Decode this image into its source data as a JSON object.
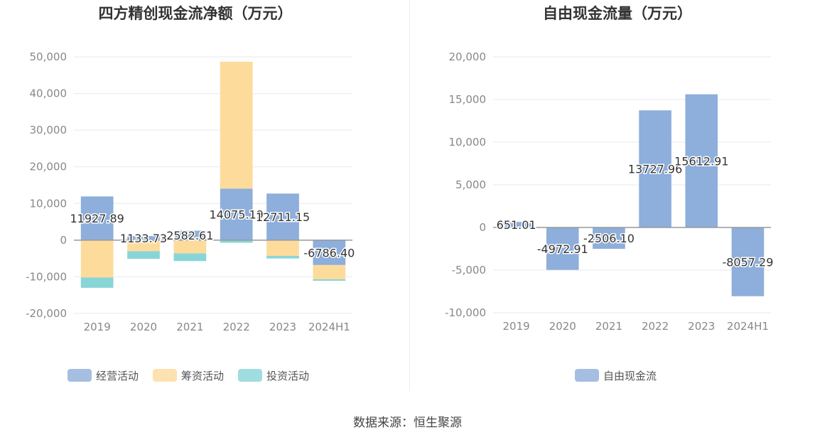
{
  "colors": {
    "operating": "#8eaedb",
    "financing": "#fddb9b",
    "investing": "#88d5d8",
    "free_cash_flow": "#8eaedb",
    "grid": "#e6e9f2",
    "axis_text": "#888888",
    "title": "#333333"
  },
  "source_text": "数据来源：恒生聚源",
  "chart_data": [
    {
      "type": "bar",
      "stacked": true,
      "title": "四方精创现金流净额（万元）",
      "categories": [
        "2019",
        "2020",
        "2021",
        "2022",
        "2023",
        "2024H1"
      ],
      "ylim": [
        -20000,
        50000
      ],
      "yticks": [
        50000,
        40000,
        30000,
        20000,
        10000,
        0,
        -10000,
        -20000
      ],
      "ytick_labels": [
        "50,000",
        "40,000",
        "30,000",
        "20,000",
        "10,000",
        "0",
        "-10,000",
        "-20,000"
      ],
      "legend_position": "bottom",
      "series": [
        {
          "name": "经营活动",
          "color_key": "operating",
          "values": [
            11927.89,
            1133.73,
            2582.61,
            14075.19,
            12711.15,
            -6786.4
          ]
        },
        {
          "name": "筹资活动",
          "color_key": "financing",
          "values": [
            -10200,
            -3000,
            -3600,
            34600,
            -4300,
            -3900
          ]
        },
        {
          "name": "投资活动",
          "color_key": "investing",
          "values": [
            -2800,
            -2100,
            -2100,
            -700,
            -700,
            -400
          ]
        }
      ],
      "data_labels": [
        "11927.89",
        "1133.73",
        "2582.61",
        "14075.19",
        "12711.15",
        "-6786.40"
      ]
    },
    {
      "type": "bar",
      "title": "自由现金流量（万元）",
      "categories": [
        "2019",
        "2020",
        "2021",
        "2022",
        "2023",
        "2024H1"
      ],
      "ylim": [
        -10000,
        20000
      ],
      "yticks": [
        20000,
        15000,
        10000,
        5000,
        0,
        -5000,
        -10000
      ],
      "ytick_labels": [
        "20,000",
        "15,000",
        "10,000",
        "5,000",
        "0",
        "-5,000",
        "-10,000"
      ],
      "legend_position": "bottom",
      "series": [
        {
          "name": "自由现金流",
          "color_key": "free_cash_flow",
          "values": [
            651.01,
            -4972.91,
            -2506.1,
            13727.96,
            15612.91,
            -8057.29
          ]
        }
      ],
      "data_labels": [
        "651.01",
        "-4972.91",
        "-2506.10",
        "13727.96",
        "15612.91",
        "-8057.29"
      ]
    }
  ]
}
